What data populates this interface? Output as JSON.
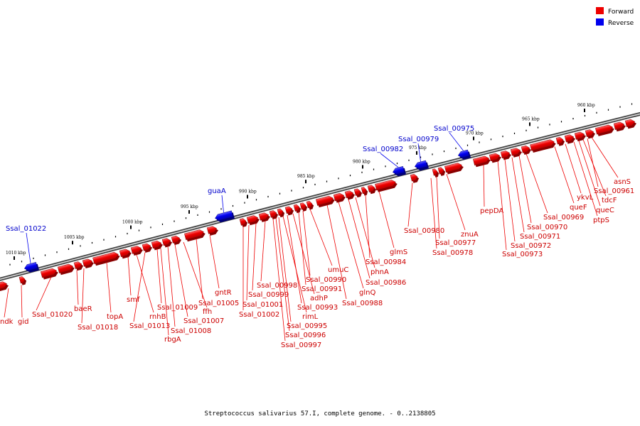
{
  "legend": {
    "forward_label": "Forward",
    "reverse_label": "Reverse",
    "forward_color": "#ee0000",
    "reverse_color": "#0000ee"
  },
  "footer_text": "Streptococcus salivarius 57.I, complete genome. - 0..2138805",
  "map": {
    "units": "kbp",
    "ticks": [
      {
        "label": "1010 kbp"
      },
      {
        "label": "1005 kbp"
      },
      {
        "label": "1000 kbp"
      },
      {
        "label": "995 kbp"
      },
      {
        "label": "990 kbp"
      },
      {
        "label": "985 kbp"
      },
      {
        "label": "980 kbp"
      },
      {
        "label": "975 kbp"
      },
      {
        "label": "970 kbp"
      },
      {
        "label": "965 kbp"
      },
      {
        "label": "960 kbp"
      }
    ],
    "reverse_genes": [
      {
        "name": "Ssal_01022"
      },
      {
        "name": "guaA"
      },
      {
        "name": "Ssal_00982"
      },
      {
        "name": "Ssal_00979"
      },
      {
        "name": "Ssal_00975"
      }
    ],
    "forward_genes": [
      {
        "name": "ndk"
      },
      {
        "name": "gid"
      },
      {
        "name": "Ssal_01020"
      },
      {
        "name": "baeR"
      },
      {
        "name": "Ssal_01018"
      },
      {
        "name": "topA"
      },
      {
        "name": "smf"
      },
      {
        "name": "rnhB"
      },
      {
        "name": "Ssal_01013"
      },
      {
        "name": "rbgA"
      },
      {
        "name": "Ssal_01009"
      },
      {
        "name": "Ssal_01008"
      },
      {
        "name": "Ssal_01007"
      },
      {
        "name": "ffh"
      },
      {
        "name": "Ssal_01005"
      },
      {
        "name": "gntR"
      },
      {
        "name": "Ssal_01002"
      },
      {
        "name": "Ssal_01001"
      },
      {
        "name": "Ssal_00999"
      },
      {
        "name": "Ssal_00998"
      },
      {
        "name": "Ssal_00997"
      },
      {
        "name": "Ssal_00996"
      },
      {
        "name": "Ssal_00995"
      },
      {
        "name": "rimL"
      },
      {
        "name": "Ssal_00993"
      },
      {
        "name": "adhP"
      },
      {
        "name": "Ssal_00991"
      },
      {
        "name": "Ssal_00990"
      },
      {
        "name": "umuC"
      },
      {
        "name": "Ssal_00988"
      },
      {
        "name": "glnQ"
      },
      {
        "name": "Ssal_00986"
      },
      {
        "name": "phnA"
      },
      {
        "name": "Ssal_00984"
      },
      {
        "name": "glmS"
      },
      {
        "name": "Ssal_00980"
      },
      {
        "name": "Ssal_00978"
      },
      {
        "name": "Ssal_00977"
      },
      {
        "name": "znuA"
      },
      {
        "name": "pepDA"
      },
      {
        "name": "Ssal_00973"
      },
      {
        "name": "Ssal_00972"
      },
      {
        "name": "Ssal_00971"
      },
      {
        "name": "Ssal_00970"
      },
      {
        "name": "Ssal_00969"
      },
      {
        "name": "queF"
      },
      {
        "name": "ykvL"
      },
      {
        "name": "ptpS"
      },
      {
        "name": "queC"
      },
      {
        "name": "tdcF"
      },
      {
        "name": "Ssal_00961"
      },
      {
        "name": "asnS"
      }
    ]
  }
}
